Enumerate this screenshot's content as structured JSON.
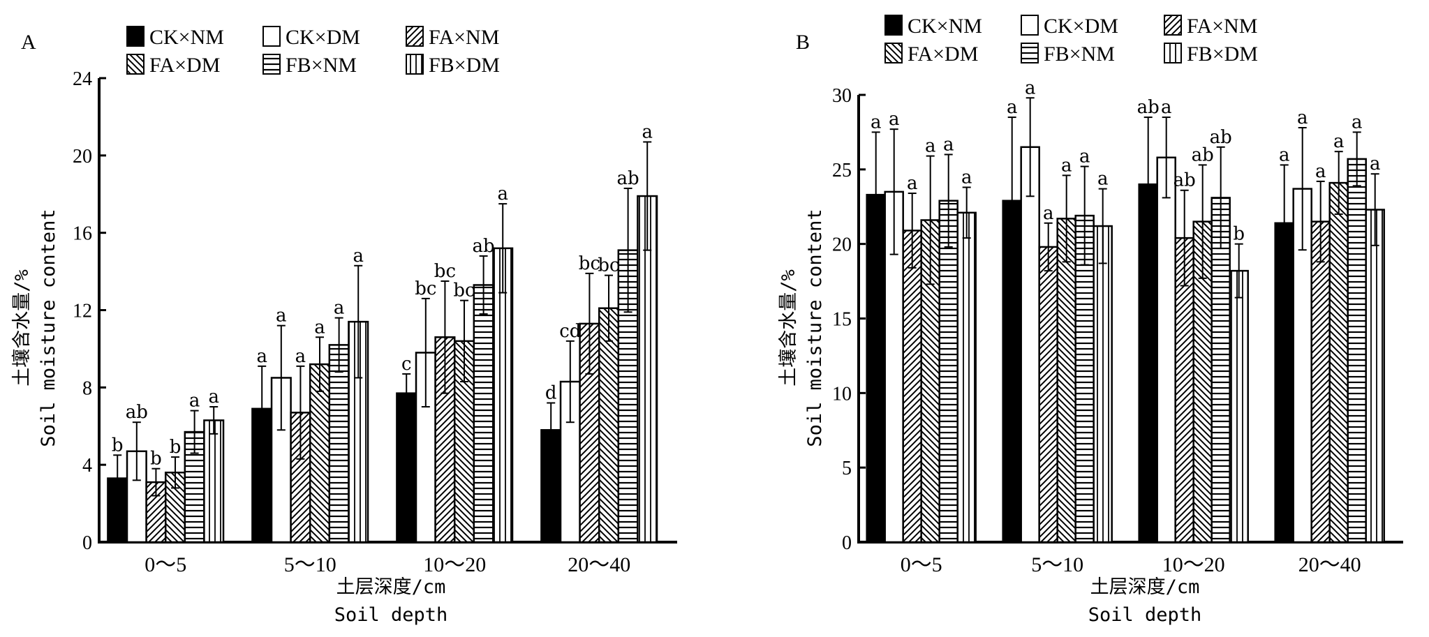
{
  "legend": {
    "items": [
      {
        "label": "CK×NM",
        "pattern": "solid"
      },
      {
        "label": "CK×DM",
        "pattern": "empty"
      },
      {
        "label": "FA×NM",
        "pattern": "diag-up"
      },
      {
        "label": "FA×DM",
        "pattern": "diag-down"
      },
      {
        "label": "FB×NM",
        "pattern": "horizontal"
      },
      {
        "label": "FB×DM",
        "pattern": "vertical"
      }
    ]
  },
  "chart_data": [
    {
      "type": "bar",
      "panel": "A",
      "title": "",
      "ylabel_cn": "土壤含水量/%",
      "ylabel_en": "Soil moisture content",
      "xlabel_cn": "土层深度/cm",
      "xlabel_en": "Soil depth",
      "ylim": [
        0,
        24
      ],
      "yticks": [
        "0",
        "4",
        "8",
        "12",
        "16",
        "20",
        "24"
      ],
      "categories": [
        "0～5",
        "5～10",
        "10～20",
        "20～40"
      ],
      "series": [
        {
          "name": "CK×NM",
          "values": [
            3.3,
            6.9,
            7.7,
            5.8
          ],
          "err_top": [
            4.5,
            9.1,
            8.7,
            7.2
          ],
          "sig": [
            "b",
            "a",
            "c",
            "d"
          ]
        },
        {
          "name": "CK×DM",
          "values": [
            4.7,
            8.5,
            9.8,
            8.3
          ],
          "err_top": [
            6.2,
            11.2,
            12.6,
            10.4
          ],
          "sig": [
            "ab",
            "a",
            "bc",
            "cd"
          ]
        },
        {
          "name": "FA×NM",
          "values": [
            3.1,
            6.7,
            10.6,
            11.3
          ],
          "err_top": [
            3.8,
            9.1,
            13.5,
            13.9
          ],
          "sig": [
            "b",
            "a",
            "bc",
            "bc"
          ]
        },
        {
          "name": "FA×DM",
          "values": [
            3.6,
            9.2,
            10.4,
            12.1
          ],
          "err_top": [
            4.4,
            10.6,
            12.5,
            13.8
          ],
          "sig": [
            "b",
            "a",
            "bc",
            "bc"
          ]
        },
        {
          "name": "FB×NM",
          "values": [
            5.7,
            10.2,
            13.3,
            15.1
          ],
          "err_top": [
            6.8,
            11.6,
            14.8,
            18.3
          ],
          "sig": [
            "a",
            "a",
            "ab",
            "ab"
          ]
        },
        {
          "name": "FB×DM",
          "values": [
            6.3,
            11.4,
            15.2,
            17.9
          ],
          "err_top": [
            7.0,
            14.3,
            17.5,
            20.7
          ],
          "sig": [
            "a",
            "a",
            "a",
            "a"
          ]
        }
      ]
    },
    {
      "type": "bar",
      "panel": "B",
      "title": "",
      "ylabel_cn": "土壤含水量/%",
      "ylabel_en": "Soil moisture content",
      "xlabel_cn": "土层深度/cm",
      "xlabel_en": "Soil depth",
      "ylim": [
        0,
        30
      ],
      "yticks": [
        "0",
        "5",
        "10",
        "15",
        "20",
        "25",
        "30"
      ],
      "categories": [
        "0～5",
        "5～10",
        "10～20",
        "20～40"
      ],
      "series": [
        {
          "name": "CK×NM",
          "values": [
            23.3,
            22.9,
            24.0,
            21.4
          ],
          "err_top": [
            27.5,
            28.5,
            28.5,
            25.3
          ],
          "sig": [
            "a",
            "a",
            "ab",
            "a"
          ]
        },
        {
          "name": "CK×DM",
          "values": [
            23.5,
            26.5,
            25.8,
            23.7
          ],
          "err_top": [
            27.7,
            29.8,
            28.5,
            27.8
          ],
          "sig": [
            "a",
            "a",
            "a",
            "a"
          ]
        },
        {
          "name": "FA×NM",
          "values": [
            20.9,
            19.8,
            20.4,
            21.5
          ],
          "err_top": [
            23.4,
            21.4,
            23.6,
            24.2
          ],
          "sig": [
            "a",
            "a",
            "ab",
            "a"
          ]
        },
        {
          "name": "FA×DM",
          "values": [
            21.6,
            21.7,
            21.5,
            24.1
          ],
          "err_top": [
            25.9,
            24.6,
            25.3,
            26.2
          ],
          "sig": [
            "a",
            "a",
            "ab",
            "a"
          ]
        },
        {
          "name": "FB×NM",
          "values": [
            22.9,
            21.9,
            23.1,
            25.7
          ],
          "err_top": [
            26.0,
            25.2,
            26.5,
            27.5
          ],
          "sig": [
            "a",
            "a",
            "ab",
            "a"
          ]
        },
        {
          "name": "FB×DM",
          "values": [
            22.1,
            21.2,
            18.2,
            22.3
          ],
          "err_top": [
            23.8,
            23.7,
            20.0,
            24.7
          ],
          "sig": [
            "a",
            "a",
            "b",
            "a"
          ]
        }
      ]
    }
  ]
}
